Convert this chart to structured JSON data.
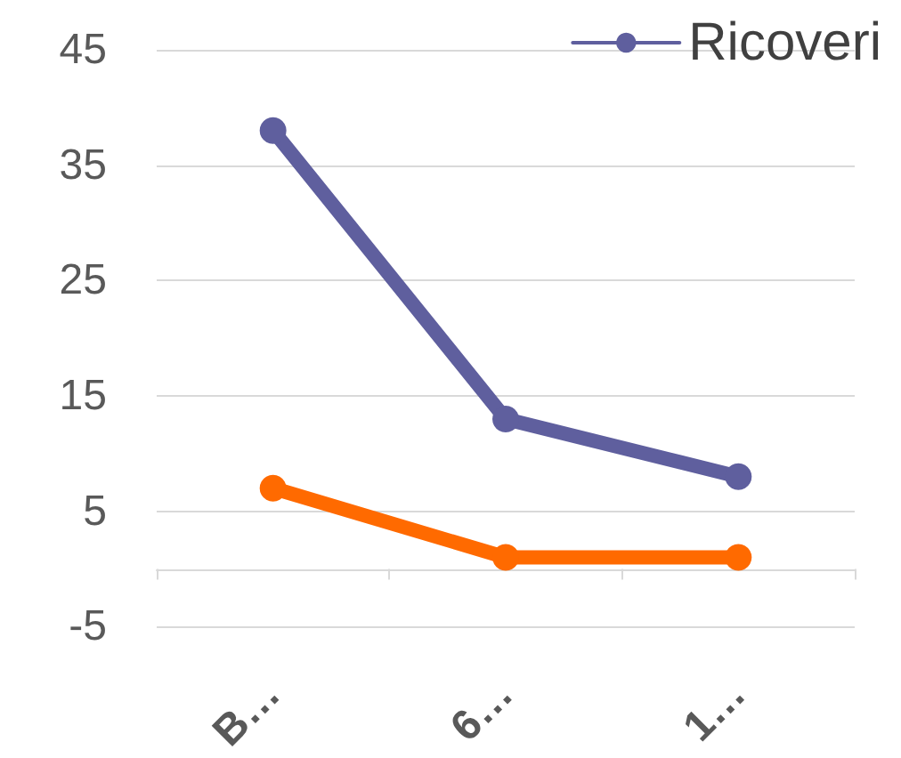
{
  "chart_data": {
    "type": "line",
    "categories": [
      "B…",
      "6…",
      "1…"
    ],
    "series": [
      {
        "name": "Ricoveri",
        "color": "#5f5f9e",
        "values": [
          38,
          13,
          8
        ]
      },
      {
        "color": "#ff6a00",
        "values": [
          7,
          1,
          1
        ]
      }
    ],
    "ylim": [
      -5,
      45
    ],
    "yticks": [
      -5,
      5,
      15,
      25,
      35,
      45
    ],
    "grid": "y",
    "legend": "top right",
    "marker": "circle",
    "line_style": "solid"
  }
}
